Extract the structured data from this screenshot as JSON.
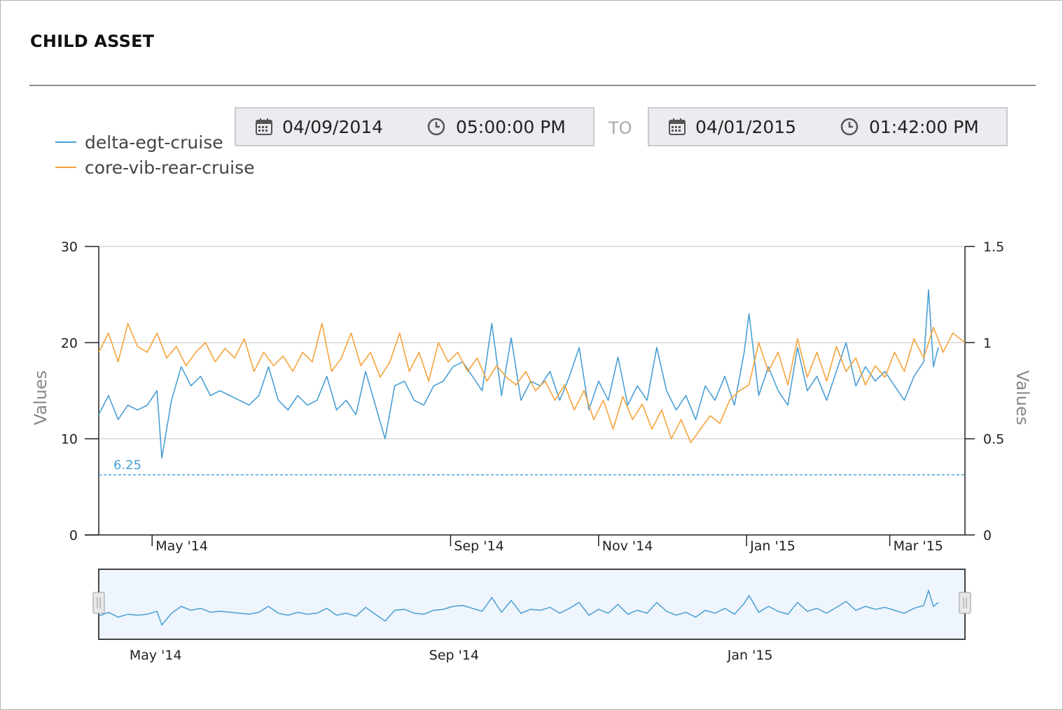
{
  "title": "CHILD ASSET",
  "date_range": {
    "from_date": "04/09/2014",
    "from_time": "05:00:00 PM",
    "separator": "TO",
    "to_date": "04/01/2015",
    "to_time": "01:42:00 PM"
  },
  "icons": {
    "date": "calendar-icon",
    "time": "clock-icon",
    "navigator_handle": "drag-handle-icon"
  },
  "chart_data": {
    "type": "line",
    "x_axis_type": "date",
    "x_range": [
      "2014-04-09",
      "2015-04-01"
    ],
    "x_tick_labels": [
      {
        "date": "2014-05-01",
        "label": "May '14"
      },
      {
        "date": "2014-09-01",
        "label": "Sep '14"
      },
      {
        "date": "2014-11-01",
        "label": "Nov '14"
      },
      {
        "date": "2015-01-01",
        "label": "Jan '15"
      },
      {
        "date": "2015-03-01",
        "label": "Mar '15"
      }
    ],
    "y_axes": [
      {
        "side": "left",
        "label": "Values",
        "range": [
          0,
          30
        ],
        "ticks": [
          0,
          10,
          20,
          30
        ]
      },
      {
        "side": "right",
        "label": "Values",
        "range": [
          0,
          1.5
        ],
        "ticks": [
          0,
          0.5,
          1,
          1.5
        ]
      }
    ],
    "grid": true,
    "legend_placement": "top-left",
    "threshold": {
      "value": 6.25,
      "label": "6.25",
      "axis": "left",
      "style": "dashed",
      "color": "#4a9fd4"
    },
    "series": [
      {
        "name": "delta-egt-cruise",
        "color": "#4a9fd4",
        "axis": "left",
        "points": [
          [
            "2014-04-09",
            12.5
          ],
          [
            "2014-04-13",
            14.5
          ],
          [
            "2014-04-17",
            12.0
          ],
          [
            "2014-04-21",
            13.5
          ],
          [
            "2014-04-25",
            13.0
          ],
          [
            "2014-04-29",
            13.5
          ],
          [
            "2014-05-03",
            15.0
          ],
          [
            "2014-05-05",
            8.0
          ],
          [
            "2014-05-09",
            14.0
          ],
          [
            "2014-05-13",
            17.5
          ],
          [
            "2014-05-17",
            15.5
          ],
          [
            "2014-05-21",
            16.5
          ],
          [
            "2014-05-25",
            14.5
          ],
          [
            "2014-05-29",
            15.0
          ],
          [
            "2014-06-02",
            14.5
          ],
          [
            "2014-06-06",
            14.0
          ],
          [
            "2014-06-10",
            13.5
          ],
          [
            "2014-06-14",
            14.5
          ],
          [
            "2014-06-18",
            17.5
          ],
          [
            "2014-06-22",
            14.0
          ],
          [
            "2014-06-26",
            13.0
          ],
          [
            "2014-06-30",
            14.5
          ],
          [
            "2014-07-04",
            13.5
          ],
          [
            "2014-07-08",
            14.0
          ],
          [
            "2014-07-12",
            16.5
          ],
          [
            "2014-07-16",
            13.0
          ],
          [
            "2014-07-20",
            14.0
          ],
          [
            "2014-07-24",
            12.5
          ],
          [
            "2014-07-28",
            17.0
          ],
          [
            "2014-08-01",
            13.5
          ],
          [
            "2014-08-05",
            10.0
          ],
          [
            "2014-08-09",
            15.5
          ],
          [
            "2014-08-13",
            16.0
          ],
          [
            "2014-08-17",
            14.0
          ],
          [
            "2014-08-21",
            13.5
          ],
          [
            "2014-08-25",
            15.5
          ],
          [
            "2014-08-29",
            16.0
          ],
          [
            "2014-09-02",
            17.5
          ],
          [
            "2014-09-06",
            18.0
          ],
          [
            "2014-09-10",
            16.5
          ],
          [
            "2014-09-14",
            15.0
          ],
          [
            "2014-09-18",
            22.0
          ],
          [
            "2014-09-22",
            14.5
          ],
          [
            "2014-09-26",
            20.5
          ],
          [
            "2014-09-30",
            14.0
          ],
          [
            "2014-10-04",
            16.0
          ],
          [
            "2014-10-08",
            15.5
          ],
          [
            "2014-10-12",
            17.0
          ],
          [
            "2014-10-16",
            14.0
          ],
          [
            "2014-10-20",
            16.5
          ],
          [
            "2014-10-24",
            19.5
          ],
          [
            "2014-10-28",
            13.0
          ],
          [
            "2014-11-01",
            16.0
          ],
          [
            "2014-11-05",
            14.0
          ],
          [
            "2014-11-09",
            18.5
          ],
          [
            "2014-11-13",
            13.5
          ],
          [
            "2014-11-17",
            15.5
          ],
          [
            "2014-11-21",
            14.0
          ],
          [
            "2014-11-25",
            19.5
          ],
          [
            "2014-11-29",
            15.0
          ],
          [
            "2014-12-03",
            13.0
          ],
          [
            "2014-12-07",
            14.5
          ],
          [
            "2014-12-11",
            12.0
          ],
          [
            "2014-12-15",
            15.5
          ],
          [
            "2014-12-19",
            14.0
          ],
          [
            "2014-12-23",
            16.5
          ],
          [
            "2014-12-27",
            13.5
          ],
          [
            "2014-12-31",
            19.0
          ],
          [
            "2015-01-02",
            23.0
          ],
          [
            "2015-01-06",
            14.5
          ],
          [
            "2015-01-10",
            17.5
          ],
          [
            "2015-01-14",
            15.0
          ],
          [
            "2015-01-18",
            13.5
          ],
          [
            "2015-01-22",
            19.5
          ],
          [
            "2015-01-26",
            15.0
          ],
          [
            "2015-01-30",
            16.5
          ],
          [
            "2015-02-03",
            14.0
          ],
          [
            "2015-02-07",
            17.0
          ],
          [
            "2015-02-11",
            20.0
          ],
          [
            "2015-02-15",
            15.5
          ],
          [
            "2015-02-19",
            17.5
          ],
          [
            "2015-02-23",
            16.0
          ],
          [
            "2015-02-27",
            17.0
          ],
          [
            "2015-03-03",
            15.5
          ],
          [
            "2015-03-07",
            14.0
          ],
          [
            "2015-03-11",
            16.5
          ],
          [
            "2015-03-15",
            18.0
          ],
          [
            "2015-03-17",
            25.5
          ],
          [
            "2015-03-19",
            17.5
          ],
          [
            "2015-03-21",
            19.5
          ]
        ]
      },
      {
        "name": "core-vib-rear-cruise",
        "color": "#f5a33b",
        "axis": "right",
        "points": [
          [
            "2014-04-09",
            0.95
          ],
          [
            "2014-04-13",
            1.05
          ],
          [
            "2014-04-17",
            0.9
          ],
          [
            "2014-04-21",
            1.1
          ],
          [
            "2014-04-25",
            0.98
          ],
          [
            "2014-04-29",
            0.95
          ],
          [
            "2014-05-03",
            1.05
          ],
          [
            "2014-05-07",
            0.92
          ],
          [
            "2014-05-11",
            0.98
          ],
          [
            "2014-05-15",
            0.88
          ],
          [
            "2014-05-19",
            0.95
          ],
          [
            "2014-05-23",
            1.0
          ],
          [
            "2014-05-27",
            0.9
          ],
          [
            "2014-05-31",
            0.97
          ],
          [
            "2014-06-04",
            0.92
          ],
          [
            "2014-06-08",
            1.02
          ],
          [
            "2014-06-12",
            0.85
          ],
          [
            "2014-06-16",
            0.95
          ],
          [
            "2014-06-20",
            0.88
          ],
          [
            "2014-06-24",
            0.93
          ],
          [
            "2014-06-28",
            0.85
          ],
          [
            "2014-07-02",
            0.95
          ],
          [
            "2014-07-06",
            0.9
          ],
          [
            "2014-07-10",
            1.1
          ],
          [
            "2014-07-14",
            0.85
          ],
          [
            "2014-07-18",
            0.92
          ],
          [
            "2014-07-22",
            1.05
          ],
          [
            "2014-07-26",
            0.88
          ],
          [
            "2014-07-30",
            0.95
          ],
          [
            "2014-08-03",
            0.82
          ],
          [
            "2014-08-07",
            0.9
          ],
          [
            "2014-08-11",
            1.05
          ],
          [
            "2014-08-15",
            0.85
          ],
          [
            "2014-08-19",
            0.95
          ],
          [
            "2014-08-23",
            0.8
          ],
          [
            "2014-08-27",
            1.0
          ],
          [
            "2014-08-31",
            0.9
          ],
          [
            "2014-09-04",
            0.95
          ],
          [
            "2014-09-08",
            0.85
          ],
          [
            "2014-09-12",
            0.92
          ],
          [
            "2014-09-16",
            0.8
          ],
          [
            "2014-09-20",
            0.88
          ],
          [
            "2014-09-24",
            0.82
          ],
          [
            "2014-09-28",
            0.78
          ],
          [
            "2014-10-02",
            0.85
          ],
          [
            "2014-10-06",
            0.75
          ],
          [
            "2014-10-10",
            0.8
          ],
          [
            "2014-10-14",
            0.7
          ],
          [
            "2014-10-18",
            0.78
          ],
          [
            "2014-10-22",
            0.65
          ],
          [
            "2014-10-26",
            0.75
          ],
          [
            "2014-10-30",
            0.6
          ],
          [
            "2014-11-03",
            0.7
          ],
          [
            "2014-11-07",
            0.55
          ],
          [
            "2014-11-11",
            0.72
          ],
          [
            "2014-11-15",
            0.6
          ],
          [
            "2014-11-19",
            0.68
          ],
          [
            "2014-11-23",
            0.55
          ],
          [
            "2014-11-27",
            0.65
          ],
          [
            "2014-12-01",
            0.5
          ],
          [
            "2014-12-05",
            0.6
          ],
          [
            "2014-12-09",
            0.48
          ],
          [
            "2014-12-13",
            0.55
          ],
          [
            "2014-12-17",
            0.62
          ],
          [
            "2014-12-21",
            0.58
          ],
          [
            "2014-12-25",
            0.7
          ],
          [
            "2014-12-29",
            0.75
          ],
          [
            "2015-01-02",
            0.78
          ],
          [
            "2015-01-06",
            1.0
          ],
          [
            "2015-01-10",
            0.85
          ],
          [
            "2015-01-14",
            0.95
          ],
          [
            "2015-01-18",
            0.78
          ],
          [
            "2015-01-22",
            1.02
          ],
          [
            "2015-01-26",
            0.82
          ],
          [
            "2015-01-30",
            0.95
          ],
          [
            "2015-02-03",
            0.8
          ],
          [
            "2015-02-07",
            0.98
          ],
          [
            "2015-02-11",
            0.85
          ],
          [
            "2015-02-15",
            0.92
          ],
          [
            "2015-02-19",
            0.78
          ],
          [
            "2015-02-23",
            0.88
          ],
          [
            "2015-02-27",
            0.82
          ],
          [
            "2015-03-03",
            0.95
          ],
          [
            "2015-03-07",
            0.85
          ],
          [
            "2015-03-11",
            1.02
          ],
          [
            "2015-03-15",
            0.92
          ],
          [
            "2015-03-19",
            1.08
          ],
          [
            "2015-03-23",
            0.95
          ],
          [
            "2015-03-27",
            1.05
          ],
          [
            "2015-04-01",
            1.0
          ]
        ]
      }
    ],
    "navigator": {
      "series": "delta-egt-cruise",
      "x_tick_labels": [
        {
          "date": "2014-05-01",
          "label": "May '14"
        },
        {
          "date": "2014-09-01",
          "label": "Sep '14"
        },
        {
          "date": "2015-01-01",
          "label": "Jan '15"
        }
      ]
    }
  }
}
